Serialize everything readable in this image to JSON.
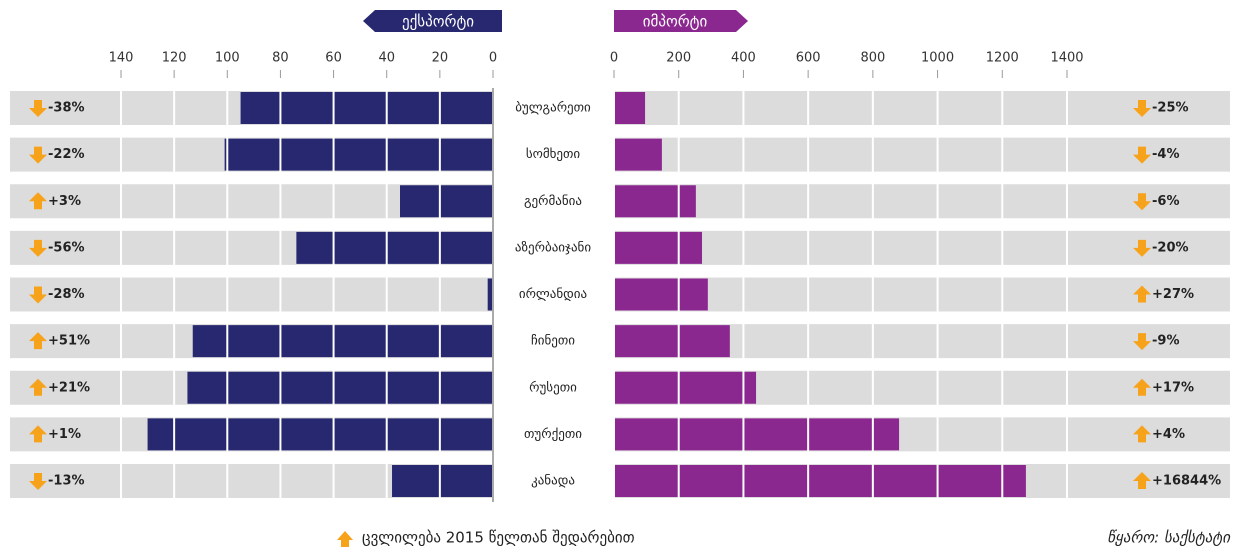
{
  "chart_data": {
    "type": "butterfly",
    "categories": [
      "ბულგარეთი",
      "სომხეთი",
      "გერმანია",
      "აზერბაიჯანი",
      "ირლანდია",
      "ჩინეთი",
      "რუსეთი",
      "თურქეთი",
      "კანადა"
    ],
    "series": [
      {
        "name": "ექსპორტი",
        "color": "#272870",
        "values": [
          95,
          101,
          35,
          74,
          2,
          113,
          115,
          130,
          38
        ],
        "changes": [
          "-38%",
          "-22%",
          "+3%",
          "-56%",
          "-28%",
          "+51%",
          "+21%",
          "+1%",
          "-13%"
        ],
        "xlim": [
          0,
          140
        ],
        "xticks": [
          140,
          120,
          100,
          80,
          60,
          40,
          20,
          0
        ]
      },
      {
        "name": "იმპორტი",
        "color": "#8b2890",
        "values": [
          96,
          148,
          253,
          272,
          290,
          358,
          439,
          881,
          1273
        ],
        "changes": [
          "-25%",
          "-4%",
          "-6%",
          "-20%",
          "+27%",
          "-9%",
          "+17%",
          "+4%",
          "+16844%"
        ],
        "xlim": [
          0,
          1400
        ],
        "xticks": [
          0,
          200,
          400,
          600,
          800,
          1000,
          1200,
          1400
        ]
      }
    ],
    "arrow_color": "#f7a21b",
    "legend_note": "ცვლილება 2015 წელთან შედარებით",
    "source": "წყარო: საქსტატი"
  }
}
